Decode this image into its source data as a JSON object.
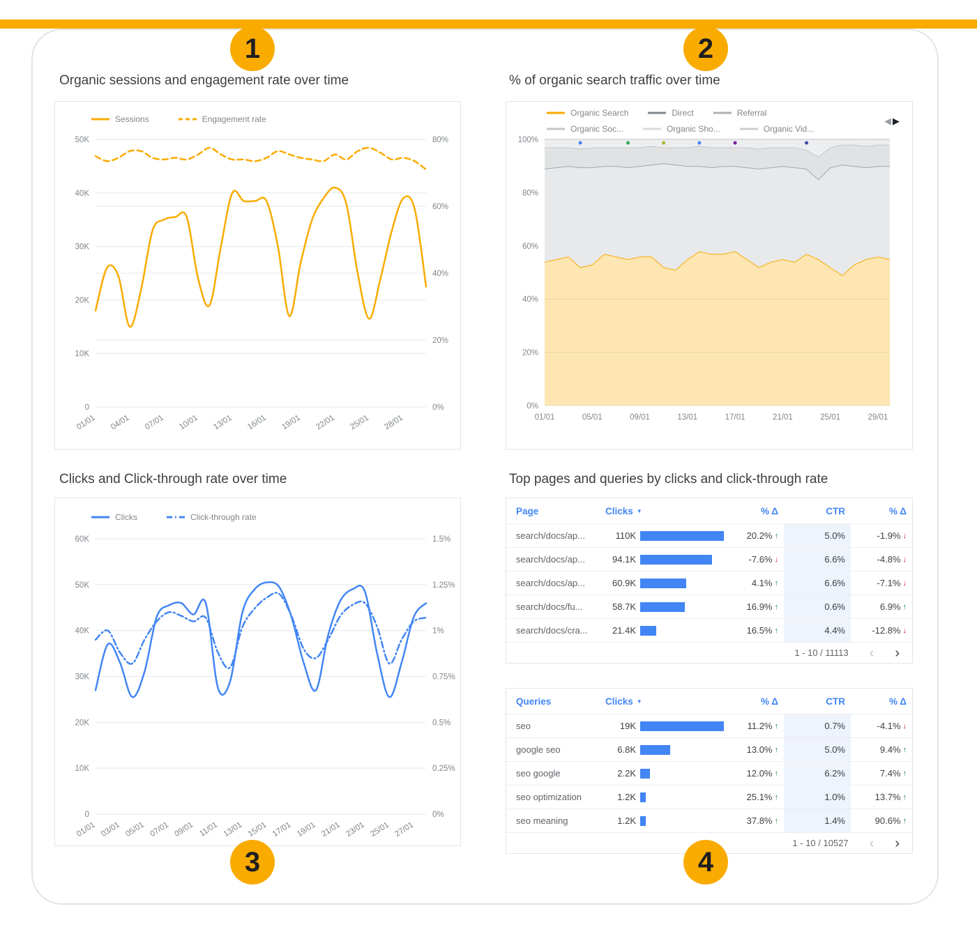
{
  "annotations": {
    "top_bar_color": "#F9AB00",
    "badge_color": "#F9AB00",
    "badges": [
      "1",
      "2",
      "3",
      "4"
    ]
  },
  "icons": {
    "prev_series": "◀",
    "next_series": "▶",
    "sort_desc": "▼",
    "pagination_prev": "‹",
    "pagination_next": "›",
    "arrow_up": "↑",
    "arrow_down": "↓"
  },
  "colors": {
    "orange": "#F9AB00",
    "orange_fill": "rgba(249,171,0,0.30)",
    "blue": "#4285F4",
    "green": "#188038",
    "red": "#C5221F",
    "grid": "#E5E7E9",
    "axis_text": "#80868B",
    "title_text": "#3C4043",
    "ctr_band": "#EEF3FC"
  },
  "chart_data": [
    {
      "id": "sessions",
      "type": "line",
      "title": "Organic sessions and engagement rate over time",
      "x_tick_labels": [
        "01/01",
        "04/01",
        "07/01",
        "10/01",
        "13/01",
        "16/01",
        "19/01",
        "22/01",
        "25/01",
        "28/01"
      ],
      "x_tick_every": 3,
      "y_left": {
        "min": 0,
        "max": 50000,
        "ticks": [
          [
            0,
            "0"
          ],
          [
            10000,
            "10K"
          ],
          [
            20000,
            "20K"
          ],
          [
            30000,
            "30K"
          ],
          [
            40000,
            "40K"
          ],
          [
            50000,
            "50K"
          ]
        ]
      },
      "y_right": {
        "min": 0,
        "max": 80,
        "ticks": [
          [
            0,
            "0%"
          ],
          [
            20,
            "20%"
          ],
          [
            40,
            "40%"
          ],
          [
            60,
            "60%"
          ],
          [
            80,
            "80%"
          ]
        ]
      },
      "legend": [
        {
          "label": "Sessions",
          "color": "#F9AB00",
          "dash": "solid"
        },
        {
          "label": "Engagement rate",
          "color": "#F9AB00",
          "dash": "dashed"
        }
      ],
      "series": [
        {
          "name": "Sessions",
          "axis": "left",
          "dash": "solid",
          "color": "#F9AB00",
          "values": [
            18000,
            26000,
            24500,
            15000,
            22000,
            33000,
            35000,
            35500,
            35500,
            24000,
            19000,
            30000,
            40000,
            38500,
            38500,
            38500,
            30000,
            17000,
            27000,
            35000,
            39000,
            41000,
            38000,
            25000,
            16500,
            24000,
            33000,
            39000,
            37000,
            22500
          ]
        },
        {
          "name": "Engagement rate",
          "axis": "right",
          "dash": "dashed",
          "color": "#F9AB00",
          "values": [
            75,
            73.5,
            74.5,
            76.5,
            76.5,
            74.5,
            74,
            74.5,
            74,
            75.5,
            77.5,
            75.5,
            74,
            74,
            73.5,
            74.5,
            76.5,
            75.5,
            74.5,
            74,
            73.5,
            75.5,
            74,
            76.5,
            77.5,
            76,
            74,
            74.5,
            73.5,
            71
          ]
        }
      ]
    },
    {
      "id": "traffic",
      "type": "stacked_area_100",
      "title": "% of organic search traffic over time",
      "x_tick_labels": [
        "01/01",
        "05/01",
        "09/01",
        "13/01",
        "17/01",
        "21/01",
        "25/01",
        "29/01"
      ],
      "x_tick_every": 4,
      "y_left": {
        "min": 0,
        "max": 100,
        "ticks": [
          [
            0,
            "0%"
          ],
          [
            20,
            "20%"
          ],
          [
            40,
            "40%"
          ],
          [
            60,
            "60%"
          ],
          [
            80,
            "80%"
          ],
          [
            100,
            "100%"
          ]
        ]
      },
      "legend_rows": [
        [
          {
            "label": "Organic Search",
            "color": "#F9AB00",
            "dash": "solid"
          },
          {
            "label": "Direct",
            "color": "#80868B",
            "dash": "solid"
          },
          {
            "label": "Referral",
            "color": "#AEB1B5",
            "dash": "solid"
          }
        ],
        [
          {
            "label": "Organic Soc...",
            "color": "#C3C6CA",
            "dash": "solid"
          },
          {
            "label": "Organic Sho...",
            "color": "#D8DADD",
            "dash": "solid"
          },
          {
            "label": "Organic Vid...",
            "color": "#CBCED2",
            "dash": "solid"
          }
        ]
      ],
      "layers": [
        {
          "name": "Organic Search",
          "fill": "rgba(249,171,0,0.30)",
          "stroke": "#F9AB00",
          "cumulative": [
            54,
            55,
            56,
            52,
            53,
            57,
            56,
            55,
            56,
            56,
            52,
            51,
            55,
            58,
            57,
            57,
            58,
            55,
            52,
            54,
            55,
            54,
            57,
            55,
            52,
            49,
            53,
            55,
            56,
            55
          ]
        },
        {
          "name": "Direct",
          "fill": "#E8E9EB",
          "stroke": "#A3A7AB",
          "cumulative": [
            89,
            89.5,
            90,
            89.5,
            89.5,
            90,
            90,
            89.5,
            90,
            90.5,
            91,
            90.5,
            90,
            90,
            89.5,
            90,
            90,
            89.5,
            89,
            89.5,
            90,
            89.5,
            89,
            85,
            89.5,
            90.5,
            90,
            89.5,
            90,
            90
          ]
        },
        {
          "name": "Referral",
          "fill": "#E1E2E4",
          "stroke": "#C2C5C9",
          "cumulative": [
            97,
            97,
            97,
            96.5,
            97,
            97,
            97,
            97,
            97,
            97.5,
            97,
            97,
            97,
            97.5,
            97,
            97,
            97,
            97,
            96.5,
            97,
            97,
            97,
            96,
            93.5,
            97,
            98,
            98,
            97.5,
            98,
            98
          ]
        },
        {
          "name": "Other",
          "fill": "#EDEEF0",
          "stroke": "#D9DBDE",
          "cumulative": [
            100,
            100,
            100,
            100,
            100,
            100,
            100,
            100,
            100,
            100,
            100,
            100,
            100,
            100,
            100,
            100,
            100,
            100,
            100,
            100,
            100,
            100,
            100,
            100,
            100,
            100,
            100,
            100,
            100,
            100
          ]
        }
      ],
      "markers": [
        {
          "i": 3,
          "color": "#4285F4"
        },
        {
          "i": 7,
          "color": "#34A853"
        },
        {
          "i": 10,
          "color": "#AFB42B"
        },
        {
          "i": 13,
          "color": "#4285F4"
        },
        {
          "i": 16,
          "color": "#7B1FA2"
        },
        {
          "i": 22,
          "color": "#3949AB"
        }
      ]
    },
    {
      "id": "clicks",
      "type": "line",
      "title": "Clicks and Click-through rate over time",
      "x_tick_labels": [
        "01/01",
        "03/01",
        "05/01",
        "07/01",
        "09/01",
        "11/01",
        "13/01",
        "15/01",
        "17/01",
        "19/01",
        "21/01",
        "23/01",
        "25/01",
        "27/01"
      ],
      "x_tick_every": 2,
      "y_left": {
        "min": 0,
        "max": 60000,
        "ticks": [
          [
            0,
            "0"
          ],
          [
            10000,
            "10K"
          ],
          [
            20000,
            "20K"
          ],
          [
            30000,
            "30K"
          ],
          [
            40000,
            "40K"
          ],
          [
            50000,
            "50K"
          ],
          [
            60000,
            "60K"
          ]
        ]
      },
      "y_right": {
        "min": 0,
        "max": 1.5,
        "ticks": [
          [
            0,
            "0%"
          ],
          [
            0.25,
            "0.25%"
          ],
          [
            0.5,
            "0.5%"
          ],
          [
            0.75,
            "0.75%"
          ],
          [
            1,
            "1%"
          ],
          [
            1.25,
            "1.25%"
          ],
          [
            1.5,
            "1.5%"
          ]
        ]
      },
      "legend": [
        {
          "label": "Clicks",
          "color": "#4285F4",
          "dash": "solid"
        },
        {
          "label": "Click-through rate",
          "color": "#4285F4",
          "dash": "dashdot"
        }
      ],
      "series": [
        {
          "name": "Clicks",
          "axis": "left",
          "dash": "solid",
          "color": "#4285F4",
          "values": [
            27000,
            37000,
            33000,
            25500,
            31000,
            43000,
            45500,
            46000,
            43500,
            46000,
            27500,
            29000,
            44000,
            49000,
            50500,
            49500,
            43000,
            33000,
            27000,
            39000,
            46500,
            49000,
            48500,
            35000,
            25500,
            33000,
            43000,
            46000
          ]
        },
        {
          "name": "Click-through rate",
          "axis": "right",
          "dash": "dashdot",
          "color": "#4285F4",
          "values": [
            0.95,
            1.0,
            0.88,
            0.82,
            0.95,
            1.05,
            1.1,
            1.08,
            1.05,
            1.07,
            0.88,
            0.8,
            1.02,
            1.12,
            1.18,
            1.2,
            1.08,
            0.9,
            0.85,
            0.95,
            1.08,
            1.14,
            1.15,
            1.02,
            0.82,
            0.95,
            1.05,
            1.07
          ]
        }
      ]
    }
  ],
  "tables_panel": {
    "title": "Top pages and queries by clicks and click-through rate",
    "pages": {
      "headers": {
        "name": "Page",
        "clicks": "Clicks",
        "delta": "% Δ",
        "ctr": "CTR",
        "delta2": "% Δ"
      },
      "max_clicks": 110,
      "rows": [
        {
          "name": "search/docs/ap...",
          "clicks_label": "110K",
          "clicks": 110,
          "delta": "20.2%",
          "delta_dir": "up",
          "ctr": "5.0%",
          "delta2": "-1.9%",
          "delta2_dir": "down"
        },
        {
          "name": "search/docs/ap...",
          "clicks_label": "94.1K",
          "clicks": 94.1,
          "delta": "-7.6%",
          "delta_dir": "down",
          "ctr": "6.6%",
          "delta2": "-4.8%",
          "delta2_dir": "down"
        },
        {
          "name": "search/docs/ap...",
          "clicks_label": "60.9K",
          "clicks": 60.9,
          "delta": "4.1%",
          "delta_dir": "up",
          "ctr": "6.6%",
          "delta2": "-7.1%",
          "delta2_dir": "down"
        },
        {
          "name": "search/docs/fu...",
          "clicks_label": "58.7K",
          "clicks": 58.7,
          "delta": "16.9%",
          "delta_dir": "up",
          "ctr": "0.6%",
          "delta2": "6.9%",
          "delta2_dir": "up"
        },
        {
          "name": "search/docs/cra...",
          "clicks_label": "21.4K",
          "clicks": 21.4,
          "delta": "16.5%",
          "delta_dir": "up",
          "ctr": "4.4%",
          "delta2": "-12.8%",
          "delta2_dir": "down"
        }
      ],
      "pagination": "1 - 10 / 11113"
    },
    "queries": {
      "headers": {
        "name": "Queries",
        "clicks": "Clicks",
        "delta": "% Δ",
        "ctr": "CTR",
        "delta2": "% Δ"
      },
      "max_clicks": 19,
      "rows": [
        {
          "name": "seo",
          "clicks_label": "19K",
          "clicks": 19,
          "delta": "11.2%",
          "delta_dir": "up",
          "ctr": "0.7%",
          "delta2": "-4.1%",
          "delta2_dir": "down"
        },
        {
          "name": "google seo",
          "clicks_label": "6.8K",
          "clicks": 6.8,
          "delta": "13.0%",
          "delta_dir": "up",
          "ctr": "5.0%",
          "delta2": "9.4%",
          "delta2_dir": "up"
        },
        {
          "name": "seo google",
          "clicks_label": "2.2K",
          "clicks": 2.2,
          "delta": "12.0%",
          "delta_dir": "up",
          "ctr": "6.2%",
          "delta2": "7.4%",
          "delta2_dir": "up"
        },
        {
          "name": "seo optimization",
          "clicks_label": "1.2K",
          "clicks": 1.2,
          "delta": "25.1%",
          "delta_dir": "up",
          "ctr": "1.0%",
          "delta2": "13.7%",
          "delta2_dir": "up"
        },
        {
          "name": "seo meaning",
          "clicks_label": "1.2K",
          "clicks": 1.2,
          "delta": "37.8%",
          "delta_dir": "up",
          "ctr": "1.4%",
          "delta2": "90.6%",
          "delta2_dir": "up"
        }
      ],
      "pagination": "1 - 10 / 10527"
    }
  }
}
